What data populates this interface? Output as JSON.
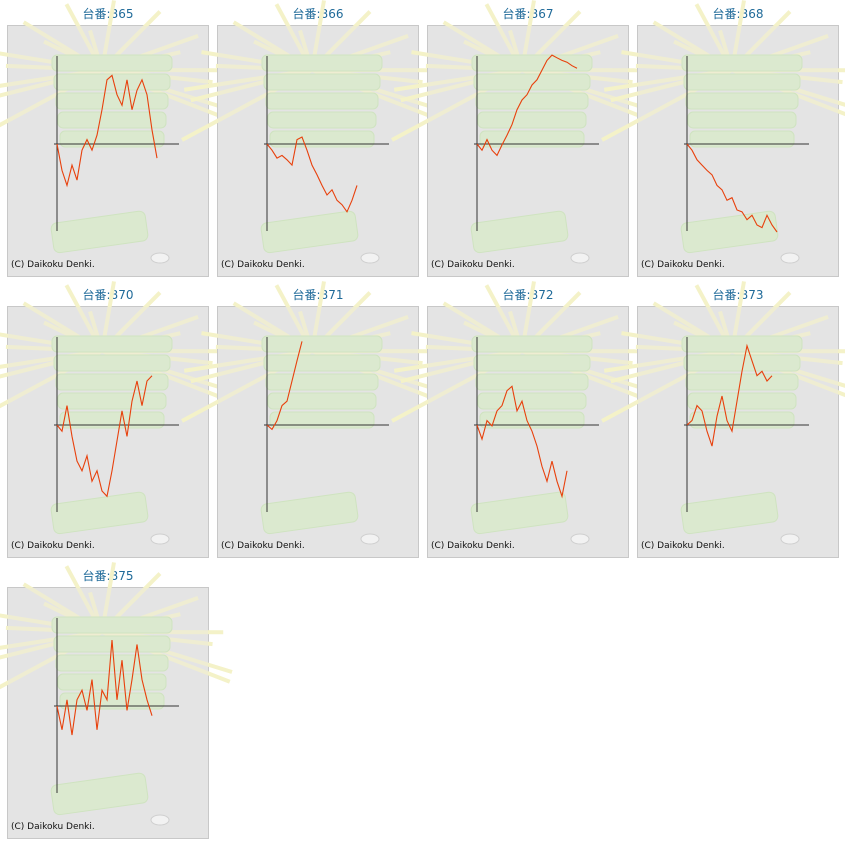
{
  "chart_data": [
    {
      "type": "line",
      "title": "台番:865",
      "note": "(C) Daikoku Denki.",
      "color": "#e8400c",
      "ylim": [
        -100,
        100
      ],
      "yticks": [
        0
      ],
      "values": [
        0,
        -30,
        -47,
        -24,
        -41,
        -7,
        5,
        -7,
        10,
        39,
        73,
        78,
        56,
        44,
        73,
        39,
        61,
        73,
        56,
        16,
        -16
      ]
    },
    {
      "type": "line",
      "title": "台番:866",
      "note": "(C) Daikoku Denki.",
      "color": "#e8400c",
      "ylim": [
        -100,
        100
      ],
      "yticks": [
        0
      ],
      "values": [
        0,
        -7,
        -16,
        -13,
        -18,
        -24,
        5,
        8,
        -7,
        -24,
        -35,
        -47,
        -58,
        -52,
        -64,
        -69,
        -77,
        -64,
        -47
      ]
    },
    {
      "type": "line",
      "title": "台番:867",
      "note": "(C) Daikoku Denki.",
      "color": "#e8400c",
      "ylim": [
        -100,
        100
      ],
      "yticks": [
        0
      ],
      "values": [
        0,
        -7,
        5,
        -7,
        -13,
        -1,
        10,
        22,
        39,
        50,
        56,
        67,
        73,
        84,
        95,
        101,
        98,
        95,
        93,
        89,
        86
      ]
    },
    {
      "type": "line",
      "title": "台番:868",
      "note": "(C) Daikoku Denki.",
      "color": "#e8400c",
      "ylim": [
        -100,
        100
      ],
      "yticks": [
        0
      ],
      "values": [
        0,
        -7,
        -18,
        -24,
        -30,
        -35,
        -47,
        -52,
        -64,
        -61,
        -75,
        -77,
        -86,
        -81,
        -92,
        -95,
        -81,
        -92,
        -100
      ]
    },
    {
      "type": "line",
      "title": "台番:870",
      "note": "(C) Daikoku Denki.",
      "color": "#e8400c",
      "ylim": [
        -100,
        100
      ],
      "yticks": [
        0
      ],
      "values": [
        0,
        -7,
        22,
        -13,
        -41,
        -52,
        -35,
        -64,
        -52,
        -75,
        -81,
        -52,
        -18,
        16,
        -13,
        27,
        50,
        22,
        50,
        56
      ]
    },
    {
      "type": "line",
      "title": "台番:871",
      "note": "(C) Daikoku Denki.",
      "color": "#e8400c",
      "ylim": [
        -100,
        100
      ],
      "yticks": [
        0
      ],
      "values": [
        0,
        -5,
        5,
        22,
        27,
        50,
        73,
        95
      ]
    },
    {
      "type": "line",
      "title": "台番:872",
      "note": "(C) Daikoku Denki.",
      "color": "#e8400c",
      "ylim": [
        -100,
        100
      ],
      "yticks": [
        0
      ],
      "values": [
        0,
        -16,
        5,
        -1,
        16,
        22,
        39,
        44,
        16,
        27,
        5,
        -7,
        -24,
        -47,
        -64,
        -41,
        -64,
        -81,
        -52
      ]
    },
    {
      "type": "line",
      "title": "台番:873",
      "note": "(C) Daikoku Denki.",
      "color": "#e8400c",
      "ylim": [
        -100,
        100
      ],
      "yticks": [
        0
      ],
      "values": [
        0,
        5,
        22,
        16,
        -7,
        -24,
        10,
        33,
        5,
        -7,
        27,
        61,
        90,
        73,
        56,
        61,
        50,
        56
      ]
    },
    {
      "type": "line",
      "title": "台番:875",
      "note": "(C) Daikoku Denki.",
      "color": "#e8400c",
      "ylim": [
        -100,
        100
      ],
      "yticks": [
        0
      ],
      "values": [
        0,
        -27,
        7,
        -33,
        7,
        18,
        -5,
        30,
        -27,
        18,
        7,
        75,
        7,
        52,
        -5,
        30,
        70,
        30,
        7,
        -11
      ]
    }
  ]
}
